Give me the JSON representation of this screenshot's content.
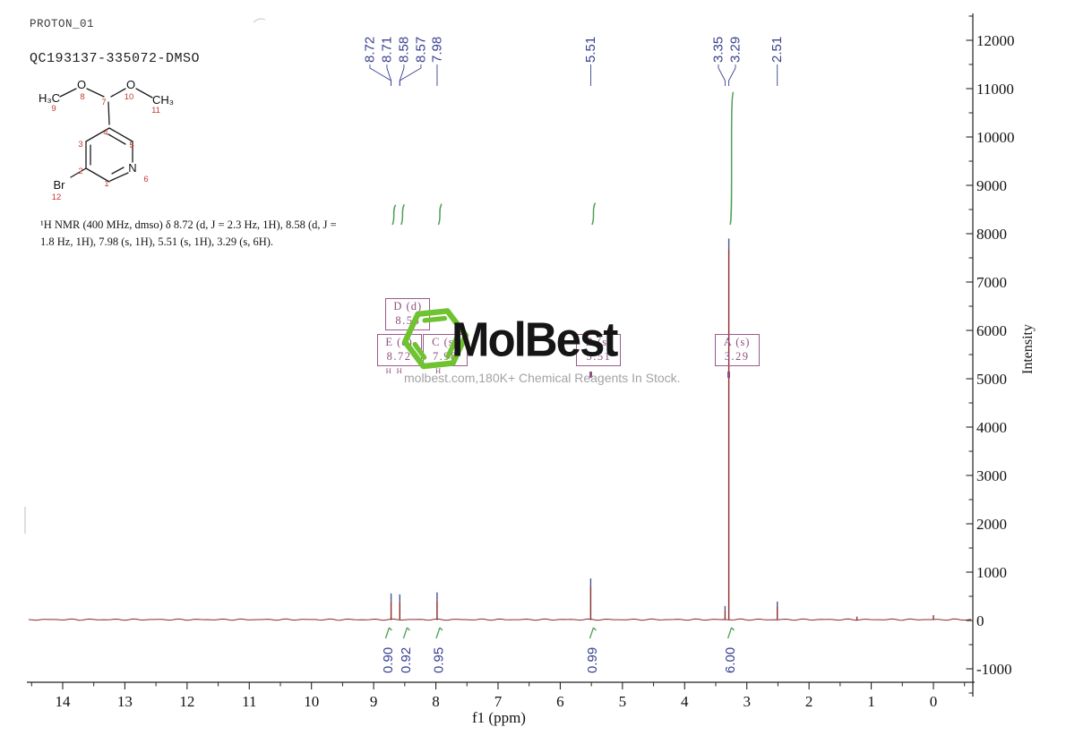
{
  "header": {
    "experiment": "PROTON_01",
    "sample_id": "QC193137-335072-DMSO"
  },
  "molecule": {
    "texts": [
      "H₃C",
      "O",
      "O",
      "CH₃",
      "N",
      "Br",
      "9",
      "8",
      "7",
      "10",
      "11",
      "4",
      "3",
      "5",
      "2",
      "1",
      "6",
      "12"
    ],
    "number_color": "#c4392f"
  },
  "citation": {
    "line1": "¹H NMR (400 MHz, dmso) δ 8.72 (d, J = 2.3 Hz, 1H), 8.58 (d, J =",
    "line2": "1.8 Hz, 1H), 7.98 (s, 1H), 5.51 (s, 1H), 3.29 (s, 6H)."
  },
  "watermark": {
    "brand": "MolBest",
    "tagline": "molbest.com,180K+ Chemical Reagents In Stock.",
    "logo_color": "#6fc230"
  },
  "chart_data": {
    "type": "line",
    "title": "",
    "xlabel": "f1 (ppm)",
    "ylabel": "Intensity",
    "xlim": [
      14.58,
      -0.66
    ],
    "ylim": [
      -1000,
      12000
    ],
    "x_axis_direction": "reversed",
    "grid": false,
    "x_ticks": [
      14,
      13,
      12,
      11,
      10,
      9,
      8,
      7,
      6,
      5,
      4,
      3,
      2,
      1,
      0
    ],
    "y_ticks": [
      -1000,
      0,
      1000,
      2000,
      3000,
      4000,
      5000,
      6000,
      7000,
      8000,
      9000,
      10000,
      11000,
      12000
    ],
    "peaks": [
      {
        "ppm": 8.72,
        "intensity": 560,
        "labels": [
          "8.72",
          "8.71"
        ]
      },
      {
        "ppm": 8.58,
        "intensity": 540,
        "labels": [
          "8.58",
          "8.57"
        ]
      },
      {
        "ppm": 7.98,
        "intensity": 580,
        "labels": [
          "7.98"
        ]
      },
      {
        "ppm": 5.51,
        "intensity": 870,
        "labels": [
          "5.51"
        ]
      },
      {
        "ppm": 3.35,
        "intensity": 300,
        "labels": [
          "3.35"
        ]
      },
      {
        "ppm": 3.29,
        "intensity": 7900,
        "labels": [
          "3.29"
        ]
      },
      {
        "ppm": 2.51,
        "intensity": 390,
        "labels": [
          "2.51"
        ]
      },
      {
        "ppm": 1.23,
        "intensity": 80,
        "labels": []
      },
      {
        "ppm": 0.0,
        "intensity": 110,
        "labels": []
      }
    ],
    "integrals": [
      {
        "ppm": 8.72,
        "value": "0.90"
      },
      {
        "ppm": 8.58,
        "value": "0.92"
      },
      {
        "ppm": 7.98,
        "value": "0.95"
      },
      {
        "ppm": 5.51,
        "value": "0.99"
      },
      {
        "ppm": 3.29,
        "value": "6.00"
      }
    ],
    "multiplets": [
      {
        "id": "D",
        "type": "d",
        "shift": "8.58",
        "row": 1
      },
      {
        "id": "E",
        "type": "d",
        "shift": "8.72",
        "row": 2
      },
      {
        "id": "C",
        "type": "s",
        "shift": "7.98",
        "row": 2
      },
      {
        "id": "B",
        "type": "s",
        "shift": "5.51",
        "row": 2
      },
      {
        "id": "A",
        "type": "s",
        "shift": "3.29",
        "row": 2
      }
    ],
    "colors": {
      "spectrum": "#8a2b2b",
      "peak_cap": "#4a5296",
      "integral": "#4f9f58",
      "annotation": "#9a5b8c",
      "label": "#38418f",
      "axis": "#222222"
    }
  }
}
